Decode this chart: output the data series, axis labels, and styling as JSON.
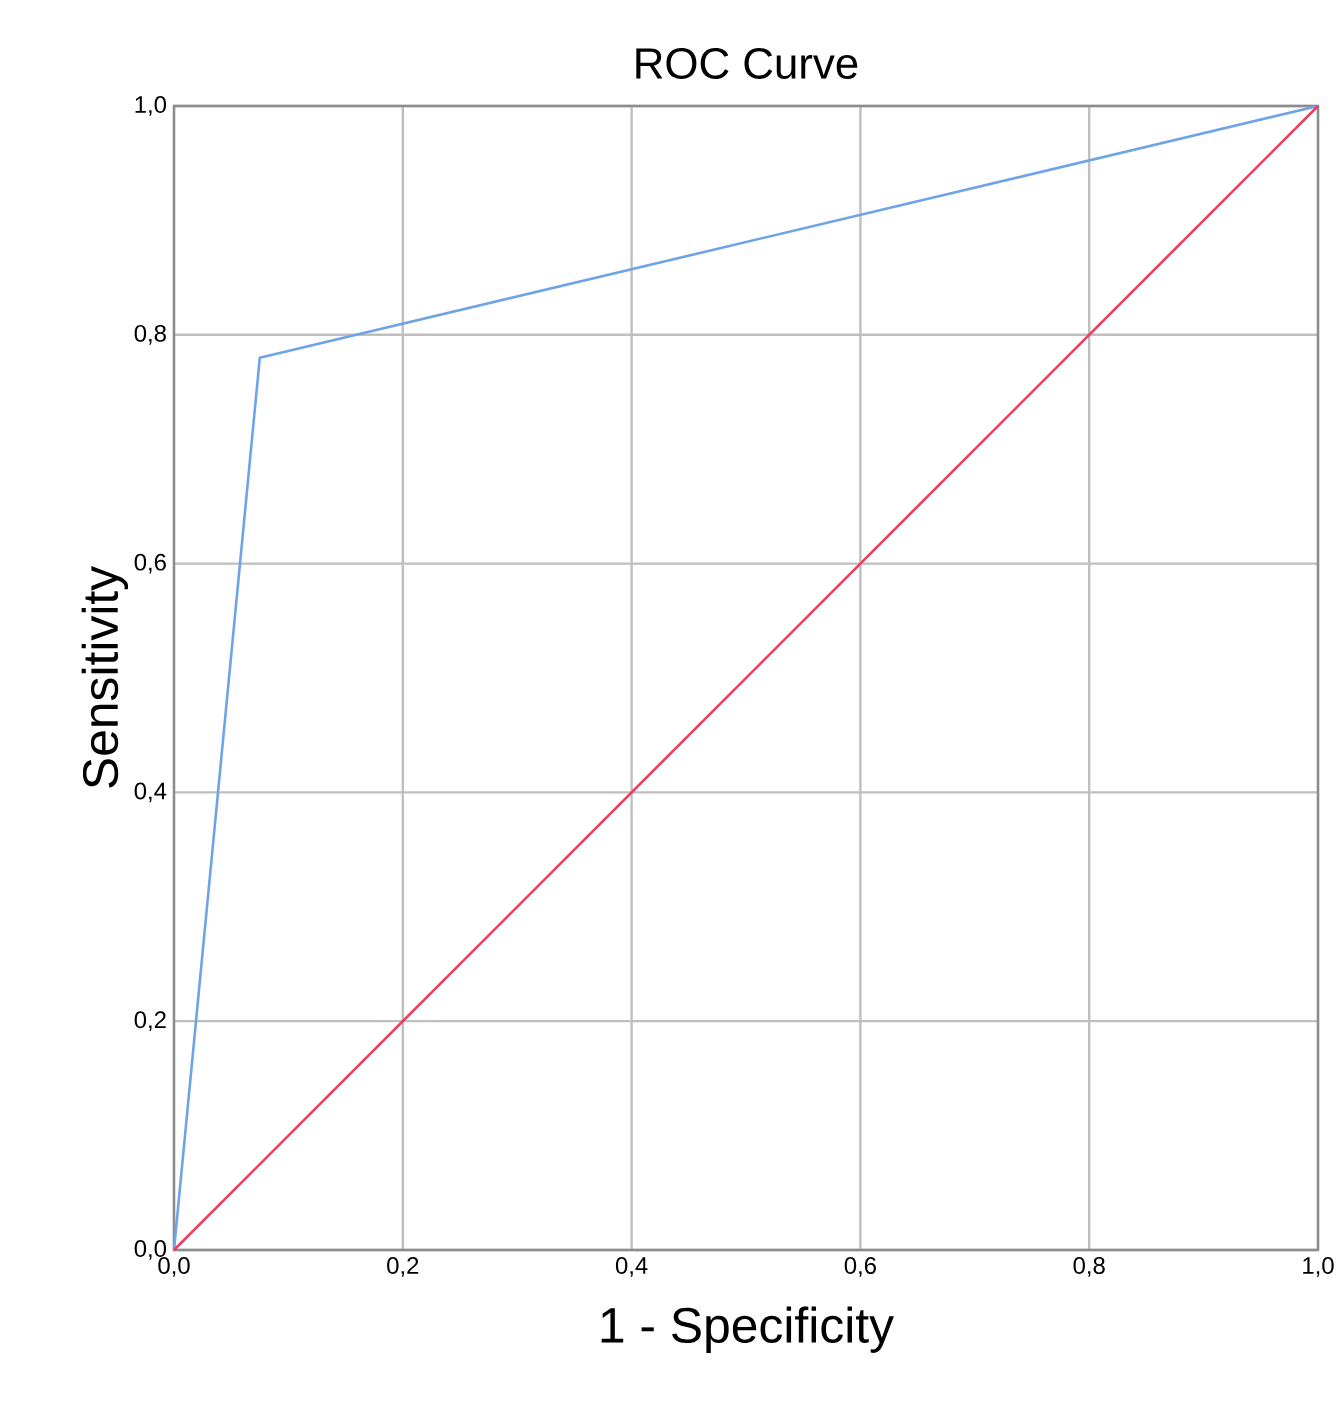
{
  "chart_data": {
    "type": "line",
    "title": "ROC Curve",
    "xlabel": "1 - Specificity",
    "ylabel": "Sensitivity",
    "x": [
      0,
      0.075,
      1
    ],
    "series": [
      {
        "color": "#6fa3e8",
        "values": [
          0,
          0.78,
          1
        ]
      },
      {
        "color": "#e8405e",
        "x": [
          0,
          1
        ],
        "values": [
          0,
          1
        ]
      }
    ],
    "xlim": [
      0,
      1
    ],
    "ylim": [
      0,
      1
    ],
    "xticks": [
      {
        "value": 0,
        "label": "0,0"
      },
      {
        "value": 0.2,
        "label": "0,2"
      },
      {
        "value": 0.4,
        "label": "0,4"
      },
      {
        "value": 0.6,
        "label": "0,6"
      },
      {
        "value": 0.8,
        "label": "0,8"
      },
      {
        "value": 1,
        "label": "1,0"
      }
    ],
    "yticks": [
      {
        "value": 0,
        "label": "0,0"
      },
      {
        "value": 0.2,
        "label": "0,2"
      },
      {
        "value": 0.4,
        "label": "0,4"
      },
      {
        "value": 0.6,
        "label": "0,6"
      },
      {
        "value": 0.8,
        "label": "0,8"
      },
      {
        "value": 1,
        "label": "1,0"
      }
    ],
    "grid": true,
    "marker": "none",
    "line_style": "solid"
  }
}
